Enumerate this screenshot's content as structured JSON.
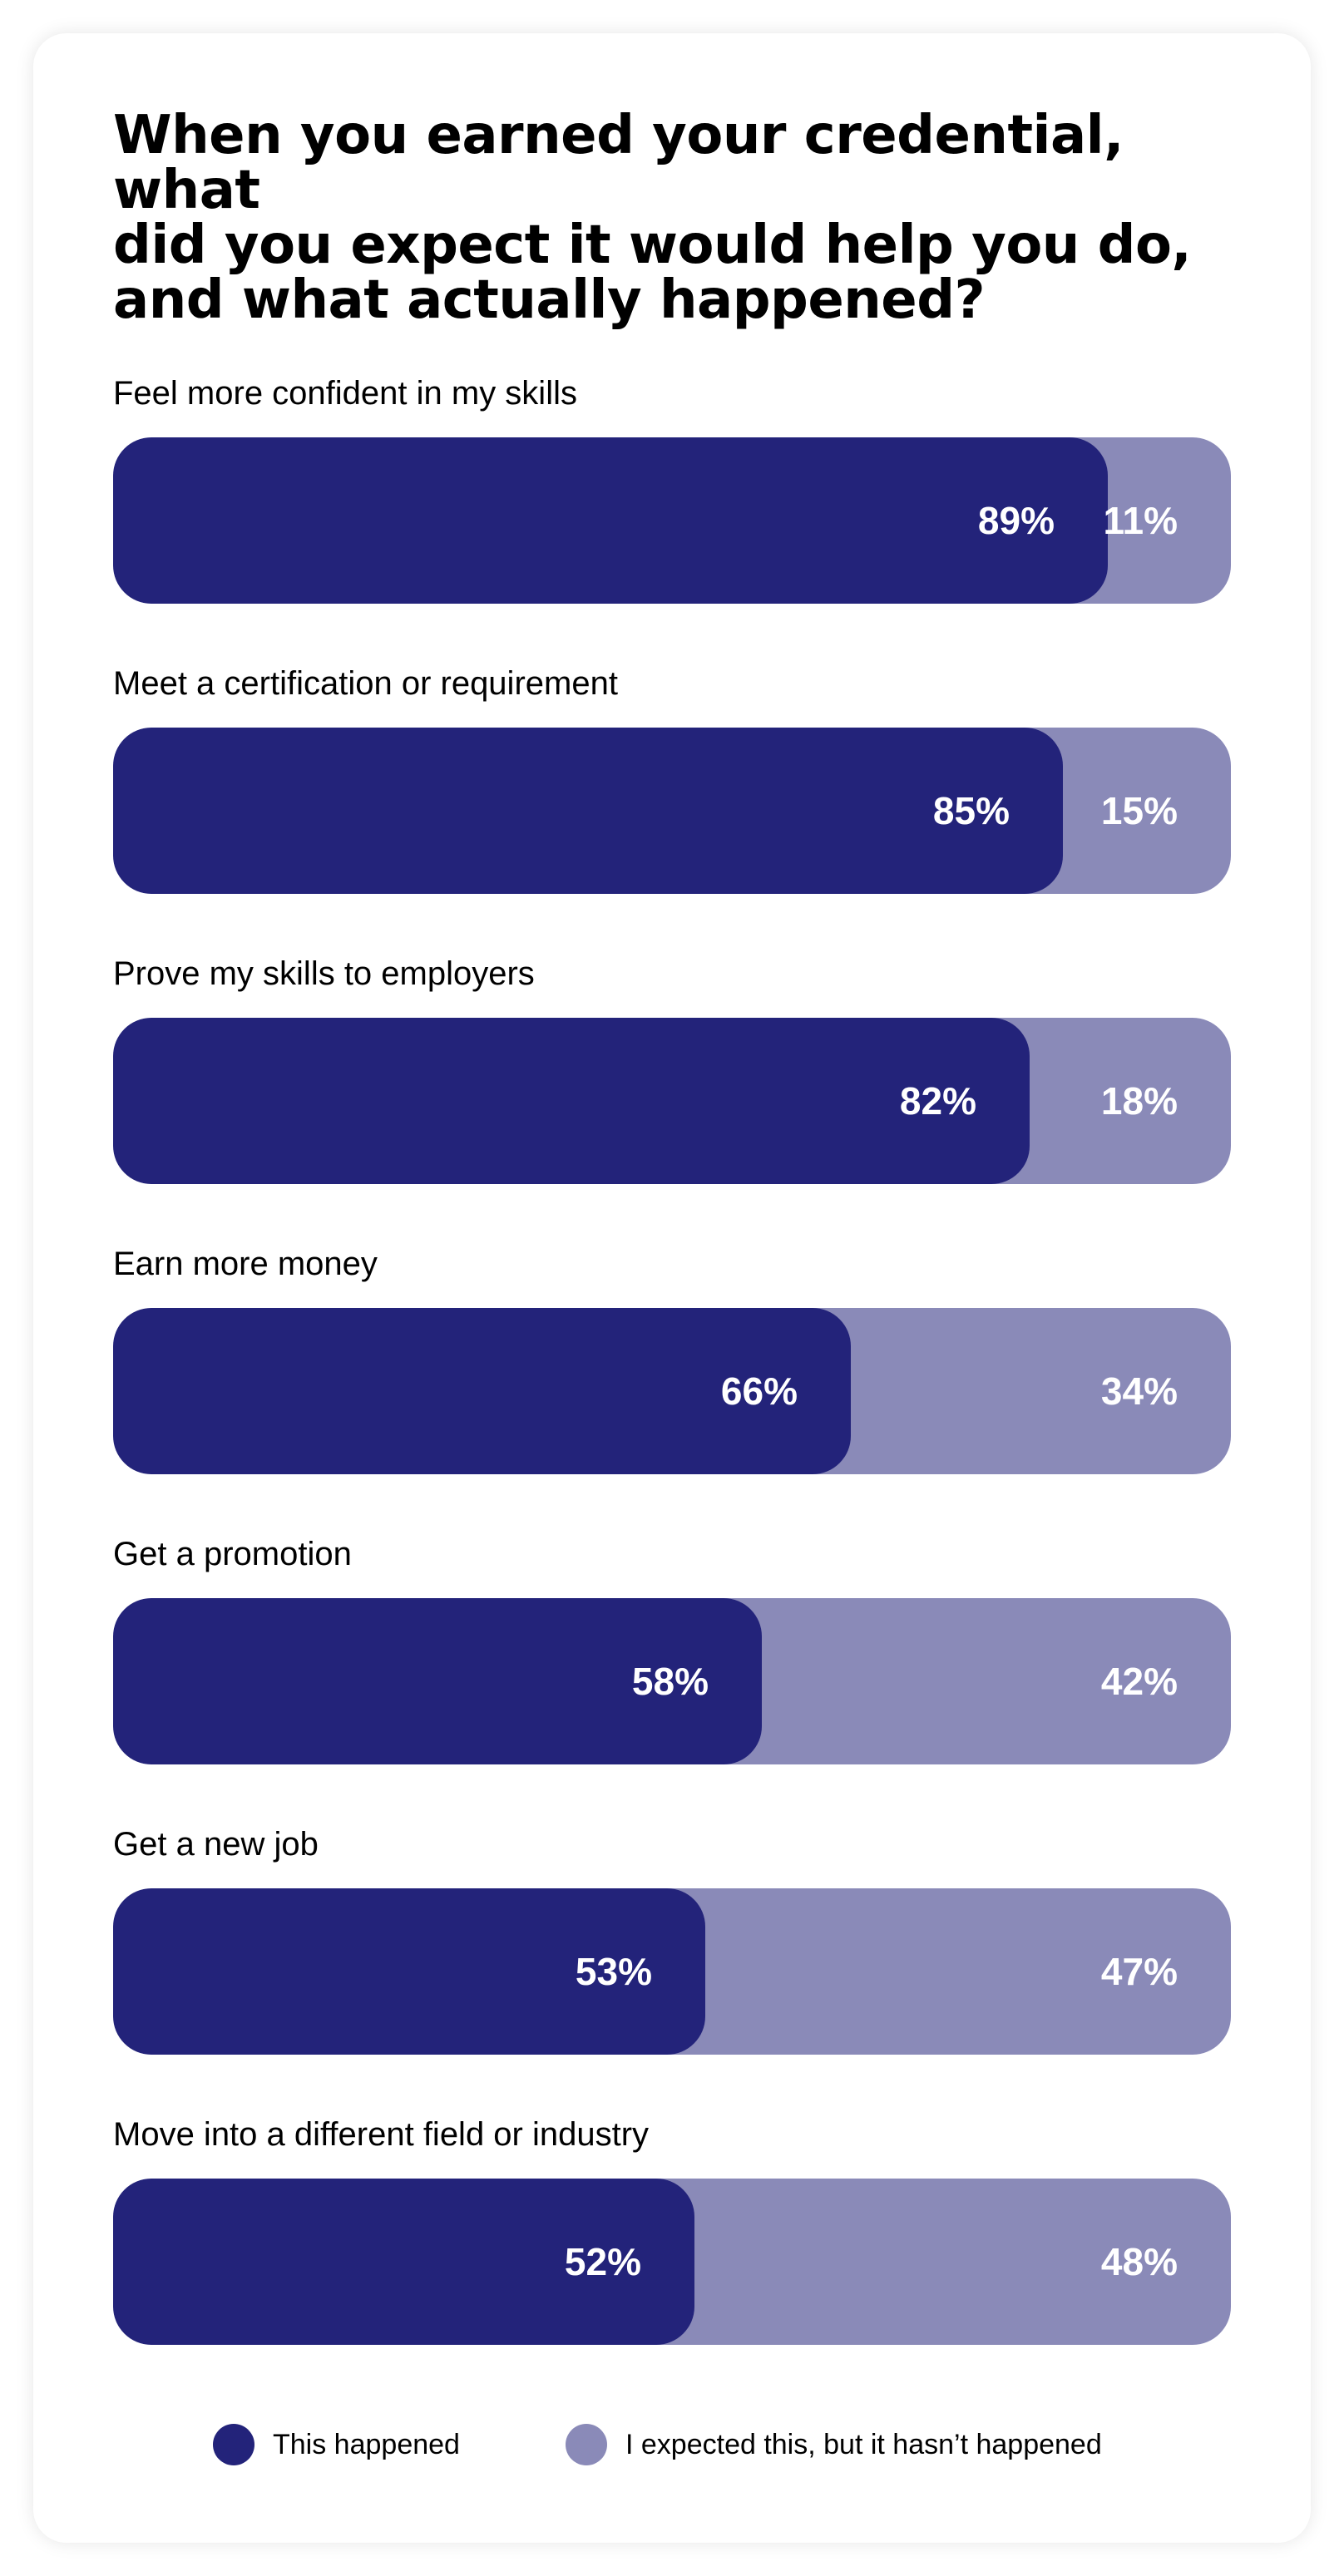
{
  "chart_data": {
    "type": "bar",
    "stacked": true,
    "orientation": "horizontal",
    "title": "When you earned your credential, what\ndid you expect it would help you do,\nand what actually happened?",
    "categories": [
      "Feel more confident in my skills",
      "Meet a certification or requirement",
      "Prove my skills to employers",
      "Earn more money",
      "Get a promotion",
      "Get a new job",
      "Move into a different field or industry"
    ],
    "series": [
      {
        "name": "This happened",
        "color": "#23237a",
        "values": [
          89,
          85,
          82,
          66,
          58,
          53,
          52
        ]
      },
      {
        "name": "I expected this, but it hasn’t happened",
        "color": "#8a8ab8",
        "values": [
          11,
          15,
          18,
          34,
          42,
          47,
          48
        ]
      }
    ],
    "value_suffix": "%",
    "xlim": [
      0,
      100
    ],
    "grid": false,
    "legend_position": "bottom"
  }
}
